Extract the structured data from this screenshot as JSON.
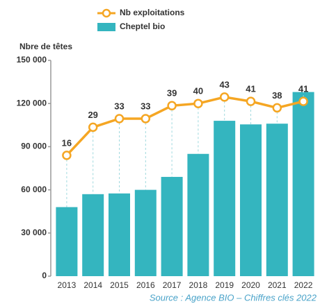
{
  "chart_data": {
    "type": "bar_line",
    "legend": [
      "Nb exploitations",
      "Cheptel bio"
    ],
    "y_label": "Nbre de têtes",
    "source": "Source : Agence BIO – Chiffres clés 2022",
    "categories": [
      "2013",
      "2014",
      "2015",
      "2016",
      "2017",
      "2018",
      "2019",
      "2020",
      "2021",
      "2022"
    ],
    "series": [
      {
        "name": "Cheptel bio",
        "type": "bar",
        "color": "#34b5bf",
        "values": [
          48000,
          57000,
          57500,
          60000,
          69000,
          85000,
          108000,
          105500,
          106000,
          128000
        ]
      },
      {
        "name": "Nb exploitations",
        "type": "line",
        "axis": "y2",
        "color": "#f5a623",
        "values": [
          16,
          29,
          33,
          33,
          39,
          40,
          43,
          41,
          38,
          41
        ]
      }
    ],
    "ylim": [
      0,
      150000
    ],
    "yticks": [
      0,
      {
        "value": 30000,
        "label": "30 000"
      },
      {
        "value": 60000,
        "label": "60 000"
      },
      {
        "value": 90000,
        "label": "90 000"
      },
      {
        "value": 120000,
        "label": "120 000"
      },
      {
        "value": 150000,
        "label": "150 000"
      }
    ],
    "y2lim": [
      -40,
      60
    ]
  }
}
